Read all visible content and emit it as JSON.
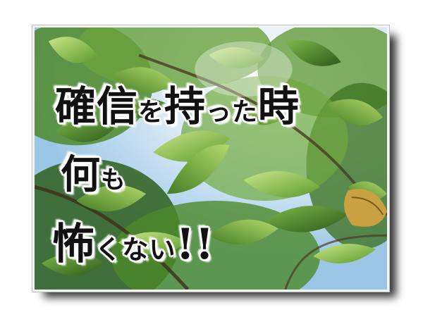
{
  "caption": {
    "line1_big1": "確信",
    "line1_small1": "を",
    "line1_big2": "持",
    "line1_small2": "った",
    "line1_big3": "時",
    "line2_big": "何",
    "line2_small": "も",
    "line3_big": "怖",
    "line3_small": "くない",
    "line3_exclaim": "!!"
  },
  "colors": {
    "text": "#111111",
    "text_outline": "#ffffff",
    "sky": "#cfe3f3",
    "leaf_light": "#a8d05c",
    "leaf_mid": "#6ea73a",
    "leaf_dark": "#2f5d1c",
    "frame": "#f4f4f4",
    "shadow": "#111111"
  }
}
